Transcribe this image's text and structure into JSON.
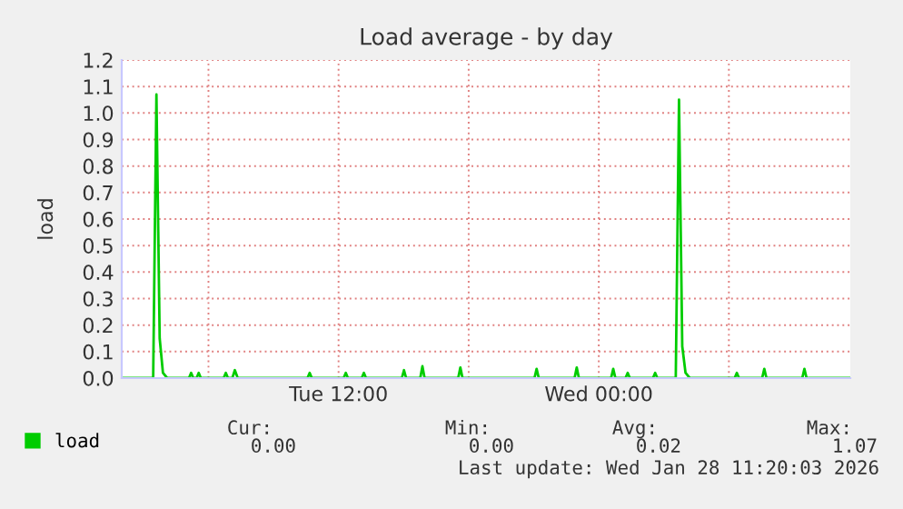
{
  "chart_data": {
    "type": "line",
    "title": "Load average - by day",
    "ylabel": "load",
    "x": [
      "2026-01-27T02:00",
      "2026-01-27T03:27",
      "2026-01-27T03:36",
      "2026-01-27T03:45",
      "2026-01-27T03:54",
      "2026-01-27T04:06",
      "2026-01-27T05:06",
      "2026-01-27T05:12",
      "2026-01-27T05:18",
      "2026-01-27T05:27",
      "2026-01-27T05:33",
      "2026-01-27T05:39",
      "2026-01-27T06:42",
      "2026-01-27T06:48",
      "2026-01-27T06:54",
      "2026-01-27T07:06",
      "2026-01-27T07:13",
      "2026-01-27T07:21",
      "2026-01-27T10:34",
      "2026-01-27T10:40",
      "2026-01-27T10:46",
      "2026-01-27T12:14",
      "2026-01-27T12:20",
      "2026-01-27T12:26",
      "2026-01-27T13:04",
      "2026-01-27T13:10",
      "2026-01-27T13:16",
      "2026-01-27T14:55",
      "2026-01-27T15:01",
      "2026-01-27T15:07",
      "2026-01-27T15:46",
      "2026-01-27T15:52",
      "2026-01-27T15:58",
      "2026-01-27T17:31",
      "2026-01-27T17:37",
      "2026-01-27T17:43",
      "2026-01-27T21:02",
      "2026-01-27T21:08",
      "2026-01-27T21:14",
      "2026-01-27T22:53",
      "2026-01-27T22:59",
      "2026-01-27T23:05",
      "2026-01-28T00:34",
      "2026-01-28T00:40",
      "2026-01-28T00:46",
      "2026-01-28T01:14",
      "2026-01-28T01:20",
      "2026-01-28T01:26",
      "2026-01-28T02:30",
      "2026-01-28T02:36",
      "2026-01-28T02:42",
      "2026-01-28T03:33",
      "2026-01-28T03:42",
      "2026-01-28T03:51",
      "2026-01-28T04:00",
      "2026-01-28T04:12",
      "2026-01-28T06:16",
      "2026-01-28T06:22",
      "2026-01-28T06:28",
      "2026-01-28T07:32",
      "2026-01-28T07:38",
      "2026-01-28T07:44",
      "2026-01-28T09:23",
      "2026-01-28T09:29",
      "2026-01-28T09:35",
      "2026-01-28T11:36"
    ],
    "series": [
      {
        "name": "load",
        "color": "#00cc00",
        "values": [
          0.0,
          0.0,
          1.07,
          0.15,
          0.02,
          0.0,
          0.0,
          0.02,
          0.0,
          0.0,
          0.02,
          0.0,
          0.0,
          0.02,
          0.0,
          0.0,
          0.03,
          0.0,
          0.0,
          0.02,
          0.0,
          0.0,
          0.02,
          0.0,
          0.0,
          0.02,
          0.0,
          0.0,
          0.03,
          0.0,
          0.0,
          0.045,
          0.0,
          0.0,
          0.04,
          0.0,
          0.0,
          0.035,
          0.0,
          0.0,
          0.04,
          0.0,
          0.0,
          0.035,
          0.0,
          0.0,
          0.02,
          0.0,
          0.0,
          0.02,
          0.0,
          0.0,
          1.05,
          0.12,
          0.02,
          0.0,
          0.0,
          0.02,
          0.0,
          0.0,
          0.035,
          0.0,
          0.0,
          0.035,
          0.0,
          0.0
        ]
      }
    ],
    "xlim": [
      "2026-01-27T02:00",
      "2026-01-28T11:36"
    ],
    "xticks": [
      {
        "value": "2026-01-27T06:00",
        "label": null
      },
      {
        "value": "2026-01-27T12:00",
        "label": "Tue 12:00"
      },
      {
        "value": "2026-01-27T18:00",
        "label": null
      },
      {
        "value": "2026-01-28T00:00",
        "label": "Wed 00:00"
      },
      {
        "value": "2026-01-28T06:00",
        "label": null
      }
    ],
    "ylim": [
      0,
      1.2
    ],
    "yticks": [
      {
        "value": 0,
        "label": "0.0"
      },
      {
        "value": 0.1,
        "label": "0.1"
      },
      {
        "value": 0.2,
        "label": "0.2"
      },
      {
        "value": 0.3,
        "label": "0.3"
      },
      {
        "value": 0.4,
        "label": "0.4"
      },
      {
        "value": 0.5,
        "label": "0.5"
      },
      {
        "value": 0.6,
        "label": "0.6"
      },
      {
        "value": 0.7,
        "label": "0.7"
      },
      {
        "value": 0.8,
        "label": "0.8"
      },
      {
        "value": 0.9,
        "label": "0.9"
      },
      {
        "value": 1.0,
        "label": "1.0"
      },
      {
        "value": 1.1,
        "label": "1.1"
      },
      {
        "value": 1.2,
        "label": "1.2"
      }
    ],
    "grid": true,
    "legend": "bottom left",
    "line_style": "solid",
    "annotations": [
      "Cur:",
      "Min:",
      "Avg:",
      "Max:",
      "0.00",
      "0.00",
      "0.02",
      "1.07",
      "Last update: Wed Jan 28 11:20:03 2026"
    ]
  }
}
